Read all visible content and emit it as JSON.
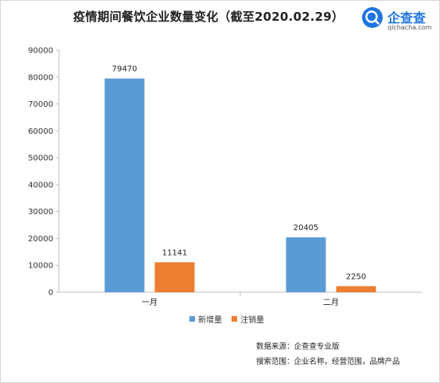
{
  "title": "疫情期间餐饮企业数量变化（截至2020.02.29）",
  "logo": {
    "brand": "企查查",
    "domain": "qichacha.com",
    "color": "#1f75e0"
  },
  "chart_data": {
    "type": "bar",
    "categories": [
      "一月",
      "二月"
    ],
    "series": [
      {
        "name": "新增量",
        "values": [
          79470,
          20405
        ],
        "color": "#5b9bd5"
      },
      {
        "name": "注销量",
        "values": [
          11141,
          2250
        ],
        "color": "#ed7d31"
      }
    ],
    "ylim": [
      0,
      90000
    ],
    "yticks": [
      0,
      10000,
      20000,
      30000,
      40000,
      50000,
      60000,
      70000,
      80000,
      90000
    ],
    "grid": false,
    "legend": "bottom"
  },
  "notes": {
    "source": "数据来源：企查查专业版",
    "scope": "搜索范围：企业名称，经营范围，品牌产品"
  }
}
